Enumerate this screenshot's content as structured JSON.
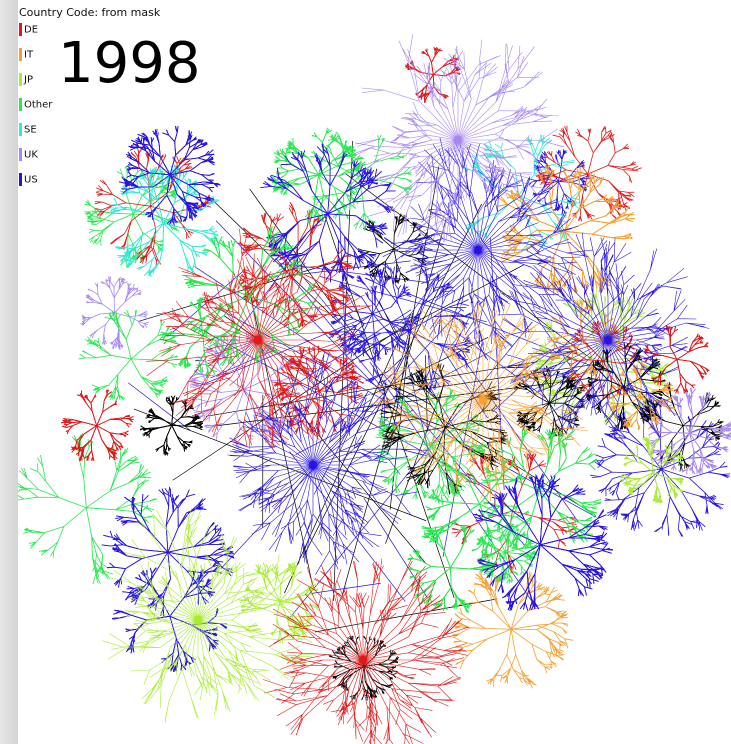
{
  "legend": {
    "title": "Country Code: from mask",
    "items": [
      {
        "label": "DE",
        "color": "#e01818"
      },
      {
        "label": "IT",
        "color": "#f5a030"
      },
      {
        "label": "JP",
        "color": "#a8ec30"
      },
      {
        "label": "Other",
        "color": "#28e850"
      },
      {
        "label": "SE",
        "color": "#30e8d8"
      },
      {
        "label": "UK",
        "color": "#a888f0"
      },
      {
        "label": "US",
        "color": "#2814e0"
      }
    ]
  },
  "year": "1998"
}
